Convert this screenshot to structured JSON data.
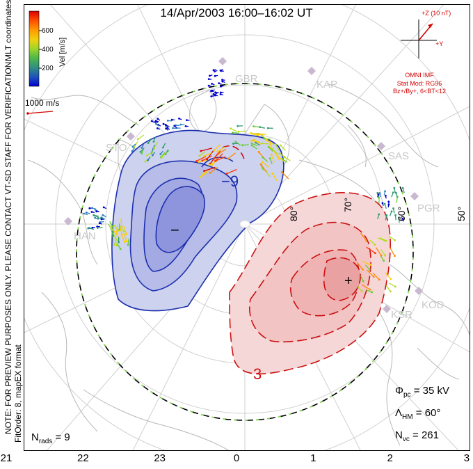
{
  "header": {
    "title": "14/Apr/2003 16:00–16:02 UT"
  },
  "side_notes": {
    "coordinates": "MLT coordinates",
    "preview_note": "NOTE: FOR PREVIEW PURPOSES ONLY. PLEASE CONTACT VT-SD STAFF FOR VERIFICATION.",
    "fit_order": "FitOrder: 8, mapEX format"
  },
  "colorbar": {
    "label": "Vel [m/s]",
    "ticks": [
      "600",
      "400",
      "200"
    ],
    "colors": [
      "#0000cc",
      "#2a7fbf",
      "#2f9b72",
      "#66cc33",
      "#b4dd22",
      "#ffcc00",
      "#ff8800",
      "#ff3300",
      "#dd0000"
    ]
  },
  "scale_vector": {
    "label": "1000 m/s",
    "color": "#d40000"
  },
  "imf": {
    "z_label": "+Z (10 nT)",
    "y_label": "+Y",
    "source": "OMNI IMF",
    "model_line1": "Stat Mod: RG96",
    "model_line2": "Bz+/By+, 6<BT<12",
    "color": "#d40000"
  },
  "radars": [
    "GBR",
    "KAP",
    "SAS",
    "PGR",
    "KOD",
    "KSR",
    "HAN",
    "STO"
  ],
  "latitude_labels": [
    "80°",
    "70°",
    "60°",
    "50°"
  ],
  "potential": {
    "negative_cell_label": "−",
    "negative_contour_value": "−9",
    "positive_cell_label": "+",
    "positive_contour_value": "3",
    "negative_color": "#1c2fae",
    "positive_color": "#cc1111"
  },
  "stats": {
    "n_rads_label": "N",
    "n_rads_sub": "rads",
    "n_rads_value": "= 9",
    "phi_label": "Φ",
    "phi_sub": "pc",
    "phi_value": "= 35 kV",
    "lambda_label": "Λ",
    "lambda_sub": "HM",
    "lambda_value": "= 60°",
    "nvc_label": "N",
    "nvc_sub": "vc",
    "nvc_value": "= 261"
  },
  "mlt_ticks": [
    "21",
    "22",
    "23",
    "0",
    "1",
    "2",
    "3"
  ]
}
